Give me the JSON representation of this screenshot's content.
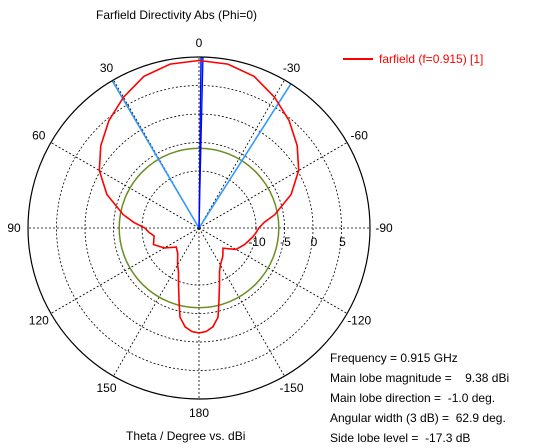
{
  "title": "Farfield Directivity Abs (Phi=0)",
  "axis_caption": "Theta / Degree vs. dBi",
  "legend": {
    "label": "farfield (f=0.915) [1]",
    "color": "#ff0000"
  },
  "info": [
    {
      "label": "Frequency = ",
      "value": "0.915 GHz"
    },
    {
      "label": "Main lobe magnitude =    ",
      "value": "9.38 dBi"
    },
    {
      "label": "Main lobe direction =  ",
      "value": "-1.0 deg."
    },
    {
      "label": "Angular width (3 dB) =  ",
      "value": "62.9 deg."
    },
    {
      "label": "Side lobe level =  ",
      "value": "-17.3 dB"
    }
  ],
  "chart_data": {
    "type": "polar-line",
    "r_unit": "dBi",
    "r_range": [
      -20,
      10
    ],
    "r_ticks": [
      -10,
      -5,
      0,
      5
    ],
    "angle_labels": [
      "0",
      "-30",
      "-60",
      "-90",
      "-120",
      "-150",
      "180",
      "150",
      "120",
      "90",
      "60",
      "30"
    ],
    "series": [
      {
        "name": "farfield (f=0.915) [1]",
        "color": "#ff0000",
        "theta_deg": [
          0,
          10,
          20,
          30,
          40,
          50,
          60,
          70,
          80,
          85,
          90,
          95,
          100,
          110,
          120,
          130,
          140,
          150,
          155,
          160,
          165,
          168,
          172,
          176,
          180,
          184,
          188,
          192,
          195,
          200,
          205,
          210,
          220,
          230,
          240,
          250,
          260,
          265,
          270,
          275,
          280,
          290,
          300,
          310,
          320,
          330,
          340,
          350,
          360
        ],
        "dbi": [
          9.38,
          9.2,
          8.3,
          6.5,
          4.6,
          2.5,
          0.2,
          -2.8,
          -6.5,
          -8.5,
          -10.5,
          -11.2,
          -12.0,
          -11.5,
          -13.0,
          -14.8,
          -14.2,
          -12.5,
          -11.5,
          -9.5,
          -6.5,
          -4.0,
          -2.5,
          -1.8,
          -1.6,
          -1.8,
          -2.5,
          -4.0,
          -6.5,
          -9.5,
          -11.5,
          -12.5,
          -13.5,
          -14.5,
          -12.5,
          -11.5,
          -10.5,
          -10.0,
          -9.5,
          -8.5,
          -6.5,
          -2.8,
          0.2,
          2.5,
          4.6,
          6.5,
          8.3,
          9.2,
          9.38
        ]
      }
    ],
    "reference_circle": {
      "color": "#6b8e23",
      "dbi": -6.0
    },
    "beam_lines": {
      "color": "#3399ff",
      "theta_deg": [
        -1.0,
        -32.5,
        30.5
      ]
    },
    "main_lobe_marker": {
      "color": "#0000ff",
      "theta_deg": -1.0
    }
  }
}
